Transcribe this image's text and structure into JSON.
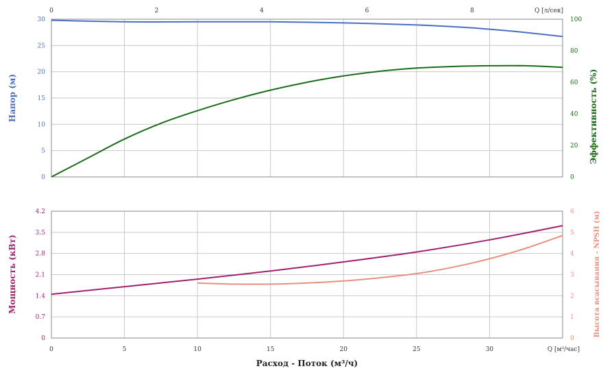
{
  "chart_data": [
    {
      "type": "line",
      "panel": "top",
      "x_bottom": {
        "label": "Q [м³/час]",
        "lim": [
          0,
          35
        ],
        "ticks": [
          0,
          5,
          10,
          15,
          20,
          25,
          30
        ]
      },
      "x_top": {
        "label": "Q [л/сек]",
        "lim": [
          0,
          9.72
        ],
        "ticks": [
          0,
          2,
          4,
          6,
          8
        ]
      },
      "y_left": {
        "label": "Напор (м)",
        "lim": [
          0,
          30
        ],
        "ticks": [
          0,
          5,
          10,
          15,
          20,
          25,
          30
        ],
        "color": "#4a6fbf"
      },
      "y_right": {
        "label": "Эффективность (%)",
        "lim": [
          0,
          100
        ],
        "ticks": [
          0,
          20,
          40,
          60,
          80,
          100
        ],
        "color": "#1a6b1a"
      },
      "grid": true,
      "series": [
        {
          "name": "Напор (м)",
          "axis": "left",
          "color": "#4a6fbf",
          "x": [
            0,
            5,
            10,
            15,
            20,
            25,
            28,
            30,
            32,
            35
          ],
          "y": [
            29.8,
            29.5,
            29.5,
            29.5,
            29.3,
            28.9,
            28.5,
            28.1,
            27.6,
            26.7
          ]
        },
        {
          "name": "Эффективность (%)",
          "axis": "right",
          "color": "#1a6b1a",
          "x": [
            0,
            2.5,
            5,
            7.5,
            10,
            12.5,
            15,
            17.5,
            20,
            22.5,
            25,
            27.5,
            30,
            32.5,
            35
          ],
          "y": [
            0,
            12,
            24,
            34,
            42,
            49,
            55,
            60,
            64,
            67,
            69,
            70,
            70.5,
            70.5,
            69.5
          ]
        }
      ]
    },
    {
      "type": "line",
      "panel": "bottom",
      "x": {
        "label": "Q [м³/час]",
        "lim": [
          0,
          35
        ],
        "ticks": [
          0,
          5,
          10,
          15,
          20,
          25,
          30
        ]
      },
      "xlabel": "Расход - Поток (м³/ч)",
      "y_left": {
        "label": "Мощность (кВт)",
        "lim": [
          0,
          4.2
        ],
        "ticks": [
          "0",
          "0.7",
          "1.4",
          "2.1",
          "2.8",
          "3.5",
          "4.2"
        ],
        "color": "#a0206e"
      },
      "y_right": {
        "label": "Высота всасывания - NPSH (м)",
        "lim": [
          0,
          6
        ],
        "ticks": [
          "0",
          "1",
          "2",
          "3",
          "4",
          "5",
          "6"
        ],
        "color": "#e8907f"
      },
      "grid": true,
      "series": [
        {
          "name": "Мощность (кВт)",
          "axis": "left",
          "color": "#a0206e",
          "x": [
            0,
            5,
            10,
            15,
            20,
            25,
            30,
            35
          ],
          "y": [
            1.45,
            1.7,
            1.95,
            2.22,
            2.52,
            2.85,
            3.25,
            3.72
          ]
        },
        {
          "name": "Высота всасывания - NPSH (м)",
          "axis": "right",
          "color": "#e8907f",
          "x": [
            10,
            12.5,
            15,
            17.5,
            20,
            22.5,
            25,
            27.5,
            30,
            32.5,
            35
          ],
          "y": [
            2.6,
            2.55,
            2.55,
            2.6,
            2.7,
            2.85,
            3.05,
            3.35,
            3.75,
            4.25,
            4.85
          ]
        }
      ]
    }
  ]
}
